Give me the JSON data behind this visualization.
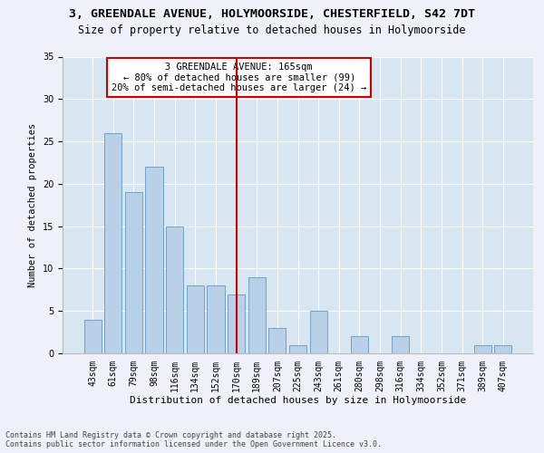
{
  "title": "3, GREENDALE AVENUE, HOLYMOORSIDE, CHESTERFIELD, S42 7DT",
  "subtitle": "Size of property relative to detached houses in Holymoorside",
  "xlabel": "Distribution of detached houses by size in Holymoorside",
  "ylabel": "Number of detached properties",
  "categories": [
    "43sqm",
    "61sqm",
    "79sqm",
    "98sqm",
    "116sqm",
    "134sqm",
    "152sqm",
    "170sqm",
    "189sqm",
    "207sqm",
    "225sqm",
    "243sqm",
    "261sqm",
    "280sqm",
    "298sqm",
    "316sqm",
    "334sqm",
    "352sqm",
    "371sqm",
    "389sqm",
    "407sqm"
  ],
  "values": [
    4,
    26,
    19,
    22,
    15,
    8,
    8,
    7,
    9,
    3,
    1,
    5,
    0,
    2,
    0,
    2,
    0,
    0,
    0,
    1,
    1
  ],
  "bar_color": "#b8d0e8",
  "bar_edge_color": "#6699bb",
  "reference_line_x": 7,
  "reference_line_color": "#cc0000",
  "annotation_text": "3 GREENDALE AVENUE: 165sqm\n← 80% of detached houses are smaller (99)\n20% of semi-detached houses are larger (24) →",
  "annotation_box_color": "#cc0000",
  "ylim": [
    0,
    35
  ],
  "yticks": [
    0,
    5,
    10,
    15,
    20,
    25,
    30,
    35
  ],
  "background_color": "#eef2f8",
  "plot_background": "#d8e6f2",
  "footer": "Contains HM Land Registry data © Crown copyright and database right 2025.\nContains public sector information licensed under the Open Government Licence v3.0.",
  "title_fontsize": 9.5,
  "subtitle_fontsize": 8.5,
  "xlabel_fontsize": 8,
  "ylabel_fontsize": 7.5,
  "tick_fontsize": 7,
  "annotation_fontsize": 7.5,
  "footer_fontsize": 6
}
